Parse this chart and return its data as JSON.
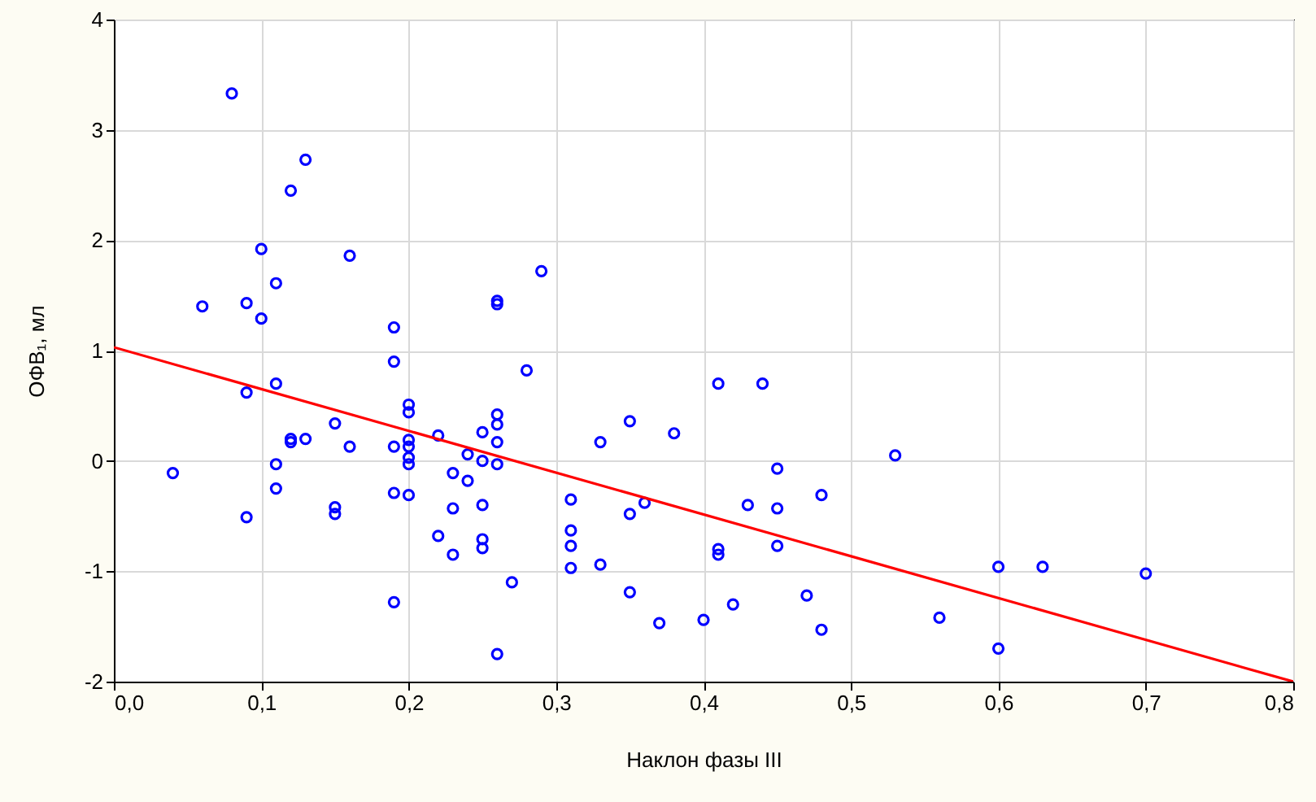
{
  "chart_data": {
    "type": "scatter",
    "xlabel": "Наклон фазы III",
    "ylabel": "ОФВ₁, мл",
    "xlim": [
      0,
      0.8
    ],
    "ylim": [
      -2,
      4
    ],
    "xticks": [
      {
        "value": 0,
        "label": "0,0"
      },
      {
        "value": 0.1,
        "label": "0,1"
      },
      {
        "value": 0.2,
        "label": "0,2"
      },
      {
        "value": 0.3,
        "label": "0,3"
      },
      {
        "value": 0.4,
        "label": "0,4"
      },
      {
        "value": 0.5,
        "label": "0,5"
      },
      {
        "value": 0.6,
        "label": "0,6"
      },
      {
        "value": 0.7,
        "label": "0,7"
      },
      {
        "value": 0.8,
        "label": "0,8"
      }
    ],
    "yticks": [
      -2,
      -1,
      0,
      1,
      2,
      3,
      4
    ],
    "grid": true,
    "series": [
      {
        "marker": "circle",
        "color": "#0000ff",
        "x": [
          0.08,
          0.13,
          0.12,
          0.1,
          0.16,
          0.11,
          0.06,
          0.09,
          0.1,
          0.19,
          0.19,
          0.11,
          0.09,
          0.26,
          0.26,
          0.29,
          0.28,
          0.41,
          0.44,
          0.04,
          0.09,
          0.11,
          0.11,
          0.12,
          0.12,
          0.13,
          0.15,
          0.16,
          0.15,
          0.15,
          0.19,
          0.19,
          0.19,
          0.2,
          0.2,
          0.2,
          0.2,
          0.2,
          0.2,
          0.2,
          0.22,
          0.22,
          0.23,
          0.23,
          0.23,
          0.24,
          0.24,
          0.25,
          0.25,
          0.25,
          0.25,
          0.25,
          0.26,
          0.26,
          0.26,
          0.26,
          0.26,
          0.27,
          0.31,
          0.31,
          0.31,
          0.31,
          0.33,
          0.33,
          0.35,
          0.35,
          0.35,
          0.36,
          0.38,
          0.37,
          0.4,
          0.41,
          0.41,
          0.42,
          0.43,
          0.45,
          0.45,
          0.45,
          0.47,
          0.48,
          0.48,
          0.53,
          0.56,
          0.6,
          0.6,
          0.63,
          0.7
        ],
        "values": [
          3.33,
          2.73,
          2.45,
          1.92,
          1.86,
          1.61,
          1.4,
          1.43,
          1.29,
          1.21,
          0.9,
          0.7,
          0.62,
          1.45,
          1.42,
          1.72,
          0.82,
          0.7,
          0.7,
          -0.11,
          -0.51,
          -0.03,
          -0.25,
          0.2,
          0.17,
          0.2,
          0.34,
          0.13,
          -0.42,
          -0.48,
          0.13,
          -0.29,
          -1.28,
          0.51,
          0.44,
          0.19,
          0.13,
          0.03,
          -0.03,
          -0.31,
          0.23,
          -0.68,
          -0.11,
          -0.43,
          -0.85,
          0.06,
          -0.18,
          0.26,
          0.0,
          -0.4,
          -0.71,
          -0.79,
          0.42,
          0.33,
          0.17,
          -0.03,
          -1.75,
          -1.1,
          -0.35,
          -0.63,
          -0.77,
          -0.97,
          0.17,
          -0.94,
          0.36,
          -0.48,
          -1.19,
          -0.38,
          0.25,
          -1.47,
          -1.44,
          -0.8,
          -0.85,
          -1.3,
          -0.4,
          -0.07,
          -0.43,
          -0.77,
          -1.22,
          -0.31,
          -1.53,
          0.05,
          -1.42,
          -0.96,
          -1.7,
          -0.96,
          -1.02
        ]
      },
      {
        "type": "line",
        "color": "#ff0000",
        "x": [
          0,
          0.8
        ],
        "values": [
          1.03,
          -2.0
        ]
      }
    ]
  }
}
